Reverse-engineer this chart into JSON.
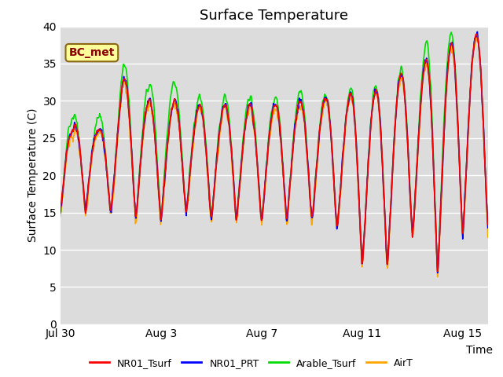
{
  "title": "Surface Temperature",
  "ylabel": "Surface Temperature (C)",
  "xlabel": "Time",
  "annotation": "BC_met",
  "ylim": [
    0,
    40
  ],
  "series_colors": {
    "NR01_Tsurf": "#ff0000",
    "NR01_PRT": "#0000ff",
    "Arable_Tsurf": "#00dd00",
    "AirT": "#ffa500"
  },
  "xtick_labels": [
    "Jul 30",
    "Aug 3",
    "Aug 7",
    "Aug 11",
    "Aug 15"
  ],
  "xtick_positions": [
    0,
    4,
    8,
    12,
    16
  ],
  "ytick_positions": [
    0,
    5,
    10,
    15,
    20,
    25,
    30,
    35,
    40
  ],
  "plot_bg": "#dcdcdc",
  "title_fontsize": 13,
  "axis_label_fontsize": 10,
  "tick_fontsize": 10,
  "n_days": 17,
  "hrs_per_day": 48
}
